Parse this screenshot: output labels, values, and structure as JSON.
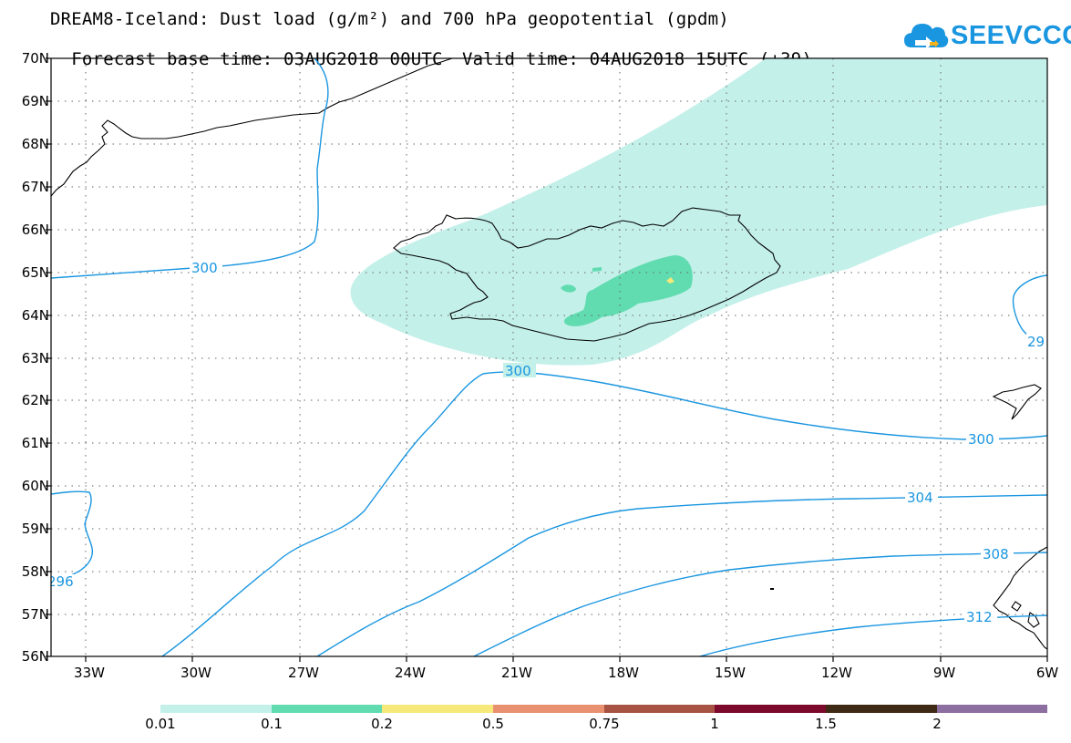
{
  "title": {
    "line1": "DREAM8-Iceland: Dust load (g/m²) and 700 hPa geopotential (gpdm)",
    "forecast_base": "Forecast base time: 03AUG2018 00UTC",
    "valid": "Valid time: 04AUG2018 15UTC (+39)"
  },
  "logo": {
    "text": "SEEVCCC"
  },
  "map": {
    "lat_labels": [
      "70N",
      "69N",
      "68N",
      "67N",
      "66N",
      "65N",
      "64N",
      "63N",
      "62N",
      "61N",
      "60N",
      "59N",
      "58N",
      "57N",
      "56N"
    ],
    "lon_labels": [
      "33W",
      "30W",
      "27W",
      "24W",
      "21W",
      "18W",
      "15W",
      "12W",
      "9W",
      "6W"
    ],
    "contour_labels": {
      "c300a": "300",
      "c300b": "300",
      "c300c": "300",
      "c296": "296",
      "c29": "29",
      "c304": "304",
      "c308": "308",
      "c312": "312"
    },
    "colors": {
      "contour": "#1a96e0",
      "dust_001": "#c4f0ea",
      "dust_01": "#60dcb0",
      "dust_02": "#f6e97a"
    }
  },
  "colorbar": {
    "labels": [
      "0.01",
      "0.1",
      "0.2",
      "0.5",
      "0.75",
      "1",
      "1.5",
      "2"
    ],
    "colors": [
      "#c4f0ea",
      "#60dcb0",
      "#f6e97a",
      "#e89070",
      "#a85244",
      "#7c0a2c",
      "#3e2a14",
      "#8c6ea0"
    ]
  }
}
